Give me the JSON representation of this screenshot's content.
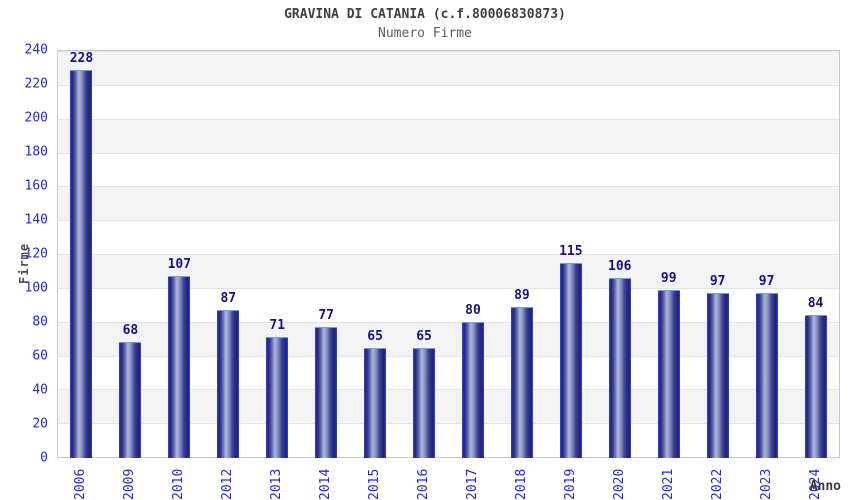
{
  "title": "GRAVINA DI CATANIA (c.f.80006830873)",
  "subtitle": "Numero Firme",
  "chart_data": {
    "type": "bar",
    "title": "GRAVINA DI CATANIA (c.f.80006830873)",
    "subtitle": "Numero Firme",
    "xlabel": "Anno",
    "ylabel": "Firme",
    "categories": [
      "2006",
      "2009",
      "2010",
      "2012",
      "2013",
      "2014",
      "2015",
      "2016",
      "2017",
      "2018",
      "2019",
      "2020",
      "2021",
      "2022",
      "2023",
      "2024"
    ],
    "values": [
      228,
      68,
      107,
      87,
      71,
      77,
      65,
      65,
      80,
      89,
      115,
      106,
      99,
      97,
      97,
      84
    ],
    "ylim": [
      0,
      240
    ],
    "ytick_step": 20,
    "grid": "alternating horizontal bands every 20 units",
    "legend": "none",
    "colors": {
      "bar_dark": "#1e2276",
      "bar_highlight": "#aeb5dc",
      "bar_outline": "#2e39cc",
      "bar_top_edge": "#67a0e8",
      "tick_label_blue": "#2328d2",
      "value_label_navy": "#14147d",
      "band_gray": "#f3f3f3",
      "plot_border": "#c9c9c9",
      "title_gray": "#3f3f3f"
    }
  }
}
